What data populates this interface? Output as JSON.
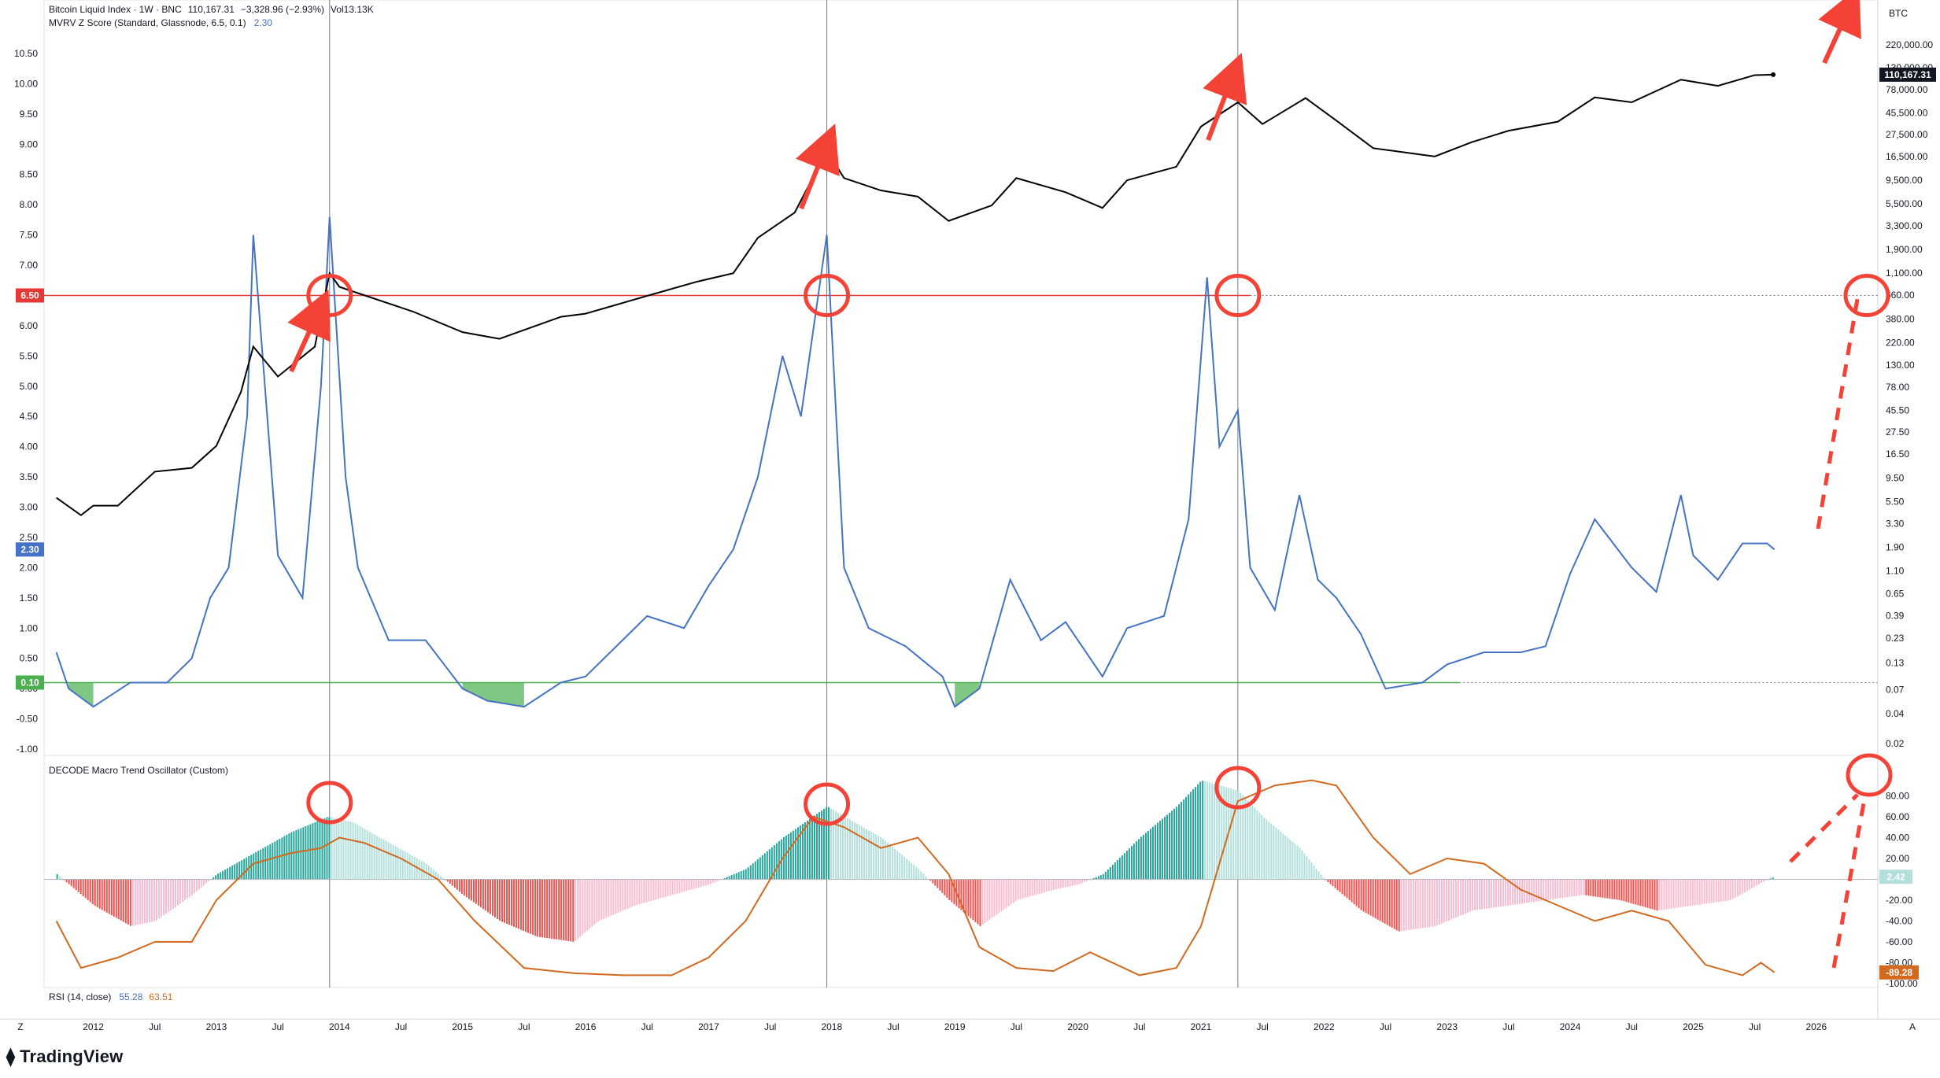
{
  "header": {
    "main_title": "Bitcoin Liquid Index · 1W · BNC",
    "main_price": "110,167.31",
    "main_change": "−3,328.96 (−2.93%)",
    "main_vol": "Vol13.13K",
    "mvrv_title": "MVRV Z Score (Standard, Glassnode, 6.5, 0.1)",
    "mvrv_value": "2.30",
    "osc_title": "DECODE Macro Trend Oscillator (Custom)",
    "rsi_title": "RSI (14, close)",
    "rsi_val1": "55.28",
    "rsi_val2": "63.51",
    "currency": "BTC",
    "tv_logo": "TradingView",
    "z_label": "Z",
    "a_label": "A"
  },
  "colors": {
    "price": "#000000",
    "mvrv": "#4472c4",
    "green_fill": "#4caf50",
    "red_line": "#e53935",
    "osc_teal": "#26a69a",
    "osc_teal_light": "#b2dfdb",
    "osc_red": "#ef5350",
    "osc_red_light": "#f8bbd0",
    "rsi": "#d2691e",
    "annotation": "#f44336"
  },
  "tags": {
    "level_high": "6.50",
    "level_low": "0.10",
    "mvrv_current": "2.30",
    "price_current": "110,167.31",
    "osc_current": "2.42",
    "rsi_current": "-89.28"
  },
  "chart_data": [
    {
      "type": "line",
      "name": "Bitcoin Liquid Index",
      "scale": "log",
      "x": [
        "2011.7",
        "2011.9",
        "2012.0",
        "2012.2",
        "2012.5",
        "2012.8",
        "2013.0",
        "2013.2",
        "2013.3",
        "2013.5",
        "2013.8",
        "2013.92",
        "2014.0",
        "2014.3",
        "2014.6",
        "2015.0",
        "2015.3",
        "2015.8",
        "2016.0",
        "2016.5",
        "2016.9",
        "2017.2",
        "2017.4",
        "2017.7",
        "2017.96",
        "2018.1",
        "2018.4",
        "2018.7",
        "2018.95",
        "2019.3",
        "2019.5",
        "2019.9",
        "2020.2",
        "2020.4",
        "2020.8",
        "2021.0",
        "2021.3",
        "2021.5",
        "2021.85",
        "2022.1",
        "2022.4",
        "2022.9",
        "2023.2",
        "2023.5",
        "2023.9",
        "2024.2",
        "2024.5",
        "2024.9",
        "2025.2",
        "2025.5",
        "2025.65"
      ],
      "y": [
        6,
        4,
        5,
        5,
        11,
        12,
        20,
        70,
        200,
        100,
        200,
        1100,
        800,
        600,
        450,
        280,
        240,
        400,
        430,
        650,
        900,
        1100,
        2500,
        4500,
        19000,
        10000,
        7500,
        6500,
        3700,
        5300,
        10000,
        7200,
        5000,
        9500,
        13000,
        33000,
        58000,
        35000,
        64000,
        38000,
        20000,
        16500,
        23000,
        30000,
        37000,
        65000,
        58000,
        98000,
        85000,
        109000,
        110167
      ]
    },
    {
      "type": "line",
      "name": "MVRV Z Score",
      "ylim": [
        -1,
        10.5
      ],
      "x": [
        "2011.7",
        "2011.8",
        "2012.0",
        "2012.3",
        "2012.6",
        "2012.8",
        "2012.95",
        "2013.1",
        "2013.25",
        "2013.3",
        "2013.5",
        "2013.7",
        "2013.85",
        "2013.92",
        "2014.05",
        "2014.15",
        "2014.4",
        "2014.7",
        "2015.0",
        "2015.2",
        "2015.5",
        "2015.8",
        "2016.0",
        "2016.3",
        "2016.5",
        "2016.8",
        "2017.0",
        "2017.2",
        "2017.4",
        "2017.6",
        "2017.75",
        "2017.96",
        "2018.1",
        "2018.3",
        "2018.6",
        "2018.9",
        "2019.0",
        "2019.2",
        "2019.45",
        "2019.7",
        "2019.9",
        "2020.2",
        "2020.4",
        "2020.7",
        "2020.9",
        "2021.05",
        "2021.15",
        "2021.3",
        "2021.4",
        "2021.6",
        "2021.8",
        "2021.95",
        "2022.1",
        "2022.3",
        "2022.5",
        "2022.8",
        "2023.0",
        "2023.3",
        "2023.6",
        "2023.8",
        "2024.0",
        "2024.2",
        "2024.5",
        "2024.7",
        "2024.9",
        "2025.0",
        "2025.2",
        "2025.4",
        "2025.6",
        "2025.66"
      ],
      "y": [
        0.6,
        0.0,
        -0.3,
        0.1,
        0.1,
        0.5,
        1.5,
        2.0,
        4.5,
        7.5,
        2.2,
        1.5,
        5.0,
        7.8,
        3.5,
        2.0,
        0.8,
        0.8,
        0.0,
        -0.2,
        -0.3,
        0.1,
        0.2,
        0.8,
        1.2,
        1.0,
        1.7,
        2.3,
        3.5,
        5.5,
        4.5,
        7.5,
        2.0,
        1.0,
        0.7,
        0.2,
        -0.3,
        0.0,
        1.8,
        0.8,
        1.1,
        0.2,
        1.0,
        1.2,
        2.8,
        6.8,
        4.0,
        4.6,
        2.0,
        1.3,
        3.2,
        1.8,
        1.5,
        0.9,
        0.0,
        0.1,
        0.4,
        0.6,
        0.6,
        0.7,
        1.9,
        2.8,
        2.0,
        1.6,
        3.2,
        2.2,
        1.8,
        2.4,
        2.4,
        2.3
      ]
    },
    {
      "type": "bar",
      "name": "DECODE Macro Trend Oscillator",
      "ylim": [
        -100,
        100
      ],
      "x": [
        "2011.7",
        "2012.0",
        "2012.3",
        "2012.5",
        "2012.8",
        "2013.0",
        "2013.3",
        "2013.6",
        "2013.9",
        "2014.1",
        "2014.4",
        "2014.7",
        "2015.0",
        "2015.3",
        "2015.6",
        "2015.9",
        "2016.1",
        "2016.4",
        "2016.7",
        "2017.0",
        "2017.3",
        "2017.6",
        "2017.96",
        "2018.1",
        "2018.4",
        "2018.7",
        "2018.95",
        "2019.2",
        "2019.5",
        "2019.8",
        "2020.0",
        "2020.2",
        "2020.5",
        "2020.8",
        "2021.0",
        "2021.3",
        "2021.5",
        "2021.8",
        "2022.0",
        "2022.3",
        "2022.6",
        "2022.9",
        "2023.2",
        "2023.5",
        "2023.8",
        "2024.1",
        "2024.4",
        "2024.7",
        "2025.0",
        "2025.3",
        "2025.6",
        "2025.66"
      ],
      "y": [
        5,
        -25,
        -45,
        -40,
        -15,
        5,
        25,
        45,
        60,
        55,
        35,
        15,
        -15,
        -40,
        -55,
        -60,
        -40,
        -25,
        -15,
        -5,
        10,
        40,
        70,
        60,
        40,
        10,
        -20,
        -45,
        -20,
        -10,
        -5,
        5,
        40,
        70,
        95,
        85,
        60,
        30,
        0,
        -30,
        -50,
        -45,
        -30,
        -25,
        -20,
        -15,
        -20,
        -30,
        -25,
        -20,
        0,
        2.42
      ]
    },
    {
      "type": "line",
      "name": "RSI (14, close)",
      "x": [
        "2011.7",
        "2011.9",
        "2012.2",
        "2012.5",
        "2012.8",
        "2013.0",
        "2013.3",
        "2013.6",
        "2013.85",
        "2014.0",
        "2014.2",
        "2014.5",
        "2014.8",
        "2015.1",
        "2015.5",
        "2015.9",
        "2016.3",
        "2016.7",
        "2017.0",
        "2017.3",
        "2017.6",
        "2017.85",
        "2018.1",
        "2018.4",
        "2018.7",
        "2018.95",
        "2019.2",
        "2019.5",
        "2019.8",
        "2020.1",
        "2020.5",
        "2020.8",
        "2021.0",
        "2021.3",
        "2021.6",
        "2021.9",
        "2022.1",
        "2022.4",
        "2022.7",
        "2023.0",
        "2023.3",
        "2023.6",
        "2023.9",
        "2024.2",
        "2024.5",
        "2024.8",
        "2025.1",
        "2025.4",
        "2025.55",
        "2025.66"
      ],
      "y": [
        -40,
        -85,
        -75,
        -60,
        -60,
        -20,
        15,
        25,
        30,
        40,
        35,
        20,
        0,
        -40,
        -85,
        -90,
        -92,
        -92,
        -75,
        -40,
        20,
        60,
        50,
        30,
        40,
        5,
        -65,
        -85,
        -88,
        -70,
        -92,
        -85,
        -45,
        75,
        90,
        95,
        90,
        40,
        5,
        20,
        15,
        -10,
        -25,
        -40,
        -30,
        -40,
        -82,
        -92,
        -80,
        -89.28
      ]
    }
  ],
  "axes": {
    "left_ticks": [
      "10.50",
      "10.00",
      "9.50",
      "9.00",
      "8.50",
      "8.00",
      "7.50",
      "7.00",
      "6.50",
      "6.00",
      "5.50",
      "5.00",
      "4.50",
      "4.00",
      "3.50",
      "3.00",
      "2.50",
      "2.00",
      "1.50",
      "1.00",
      "0.50",
      "0.00",
      "-0.50",
      "-1.00"
    ],
    "right_price_ticks": [
      "220,000.00",
      "130,000.00",
      "78,000.00",
      "45,500.00",
      "27,500.00",
      "16,500.00",
      "9,500.00",
      "5,500.00",
      "3,300.00",
      "1,900.00",
      "1,100.00",
      "660.00",
      "380.00",
      "220.00",
      "130.00",
      "78.00",
      "45.50",
      "27.50",
      "16.50",
      "9.50",
      "5.50",
      "3.30",
      "1.90",
      "1.10",
      "0.65",
      "0.39",
      "0.23",
      "0.13",
      "0.07",
      "0.04",
      "0.02"
    ],
    "right_osc_ticks": [
      "80.00",
      "60.00",
      "40.00",
      "20.00",
      "0.00",
      "-20.00",
      "-40.00",
      "-60.00",
      "-80.00",
      "-100.00"
    ],
    "x_ticks": [
      "2012",
      "Jul",
      "2013",
      "Jul",
      "2014",
      "Jul",
      "2015",
      "Jul",
      "2016",
      "Jul",
      "2017",
      "Jul",
      "2018",
      "Jul",
      "2019",
      "Jul",
      "2020",
      "Jul",
      "2021",
      "Jul",
      "2022",
      "Jul",
      "2023",
      "Jul",
      "2024",
      "Jul",
      "2025",
      "Jul",
      "2026"
    ]
  }
}
